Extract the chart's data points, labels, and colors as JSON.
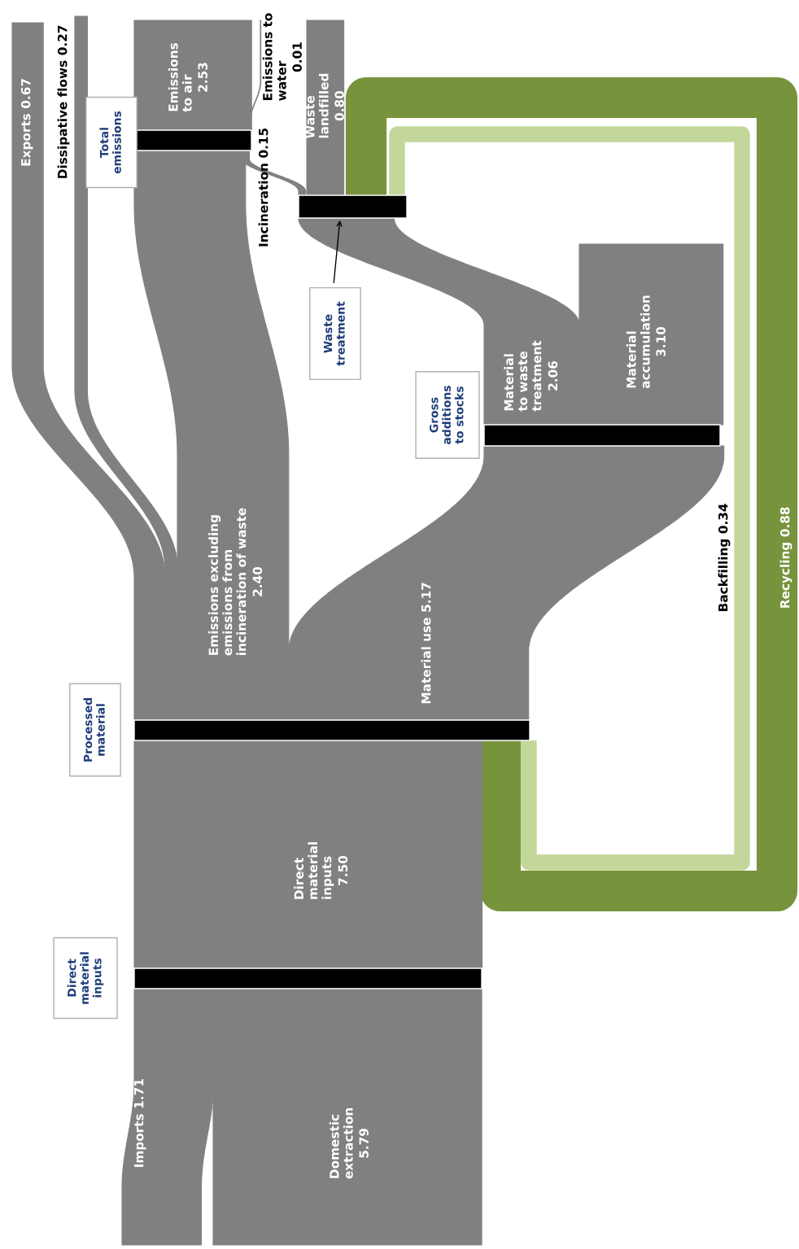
{
  "chart_data": {
    "type": "other",
    "categories": [
      "Imports",
      "Domestic extraction",
      "Direct material inputs",
      "Exports",
      "Dissipative flows",
      "Emissions excluding emissions from incineration of waste",
      "Material use",
      "Emissions to air",
      "Emissions to water",
      "Incineration",
      "Waste landfilled",
      "Material to waste treatment",
      "Material accumulation",
      "Backfilling",
      "Recycling"
    ],
    "values": [
      1.71,
      5.79,
      7.5,
      0.67,
      0.27,
      2.4,
      5.17,
      2.53,
      0.01,
      0.15,
      0.8,
      2.06,
      3.1,
      0.34,
      0.88
    ],
    "value_labels": [
      "1.71",
      "5.79",
      "7.50",
      "0.67",
      "0.27",
      "2.40",
      "5.17",
      "2.53",
      "0.01",
      "0.15",
      "0.80",
      "2.06",
      "3.10",
      "0.34",
      "0.88"
    ],
    "colors": [
      "#808080",
      "#808080",
      "#808080",
      "#808080",
      "#808080",
      "#808080",
      "#808080",
      "#808080",
      "#808080",
      "#808080",
      "#808080",
      "#808080",
      "#808080",
      "#c4d79b",
      "#77933c"
    ],
    "annotations": [
      "Total emissions",
      "Waste treatment",
      "Gross additions to stocks",
      "Processed material",
      "Direct material inputs"
    ]
  }
}
